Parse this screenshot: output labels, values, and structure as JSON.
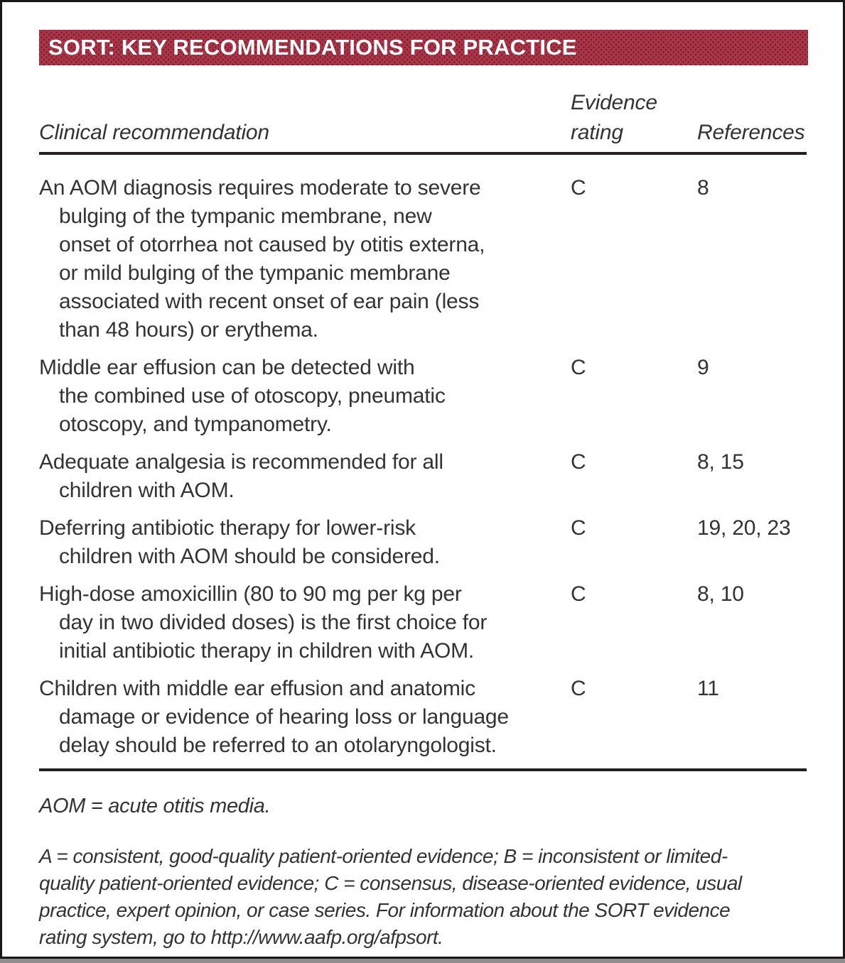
{
  "title_bar": {
    "text": "SORT: KEY RECOMMENDATIONS FOR PRACTICE",
    "background_color": "#a43043",
    "text_color": "#ffffff"
  },
  "table": {
    "columns": {
      "recommendation": "Clinical recommendation",
      "evidence_line1": "Evidence",
      "evidence_line2": "rating",
      "references": "References"
    },
    "rows": [
      {
        "recommendation": "An AOM diagnosis requires moderate to severe\nbulging of the tympanic membrane, new\nonset of otorrhea not caused by otitis externa,\nor mild bulging of the tympanic membrane\nassociated with recent onset of ear pain (less\nthan 48 hours) or erythema.",
        "evidence_rating": "C",
        "references": "8"
      },
      {
        "recommendation": "Middle ear effusion can be detected with\nthe combined use of otoscopy, pneumatic\notoscopy, and tympanometry.",
        "evidence_rating": "C",
        "references": "9"
      },
      {
        "recommendation": "Adequate analgesia is recommended for all\nchildren with AOM.",
        "evidence_rating": "C",
        "references": "8, 15"
      },
      {
        "recommendation": "Deferring antibiotic therapy for lower-risk\nchildren with AOM should be considered.",
        "evidence_rating": "C",
        "references": "19, 20, 23"
      },
      {
        "recommendation": "High-dose amoxicillin (80 to 90 mg per kg per\nday in two divided doses) is the first choice for\ninitial antibiotic therapy in children with AOM.",
        "evidence_rating": "C",
        "references": "8, 10"
      },
      {
        "recommendation": "Children with middle ear effusion and anatomic\ndamage or evidence of hearing loss or language\ndelay should be referred to an otolaryngologist.",
        "evidence_rating": "C",
        "references": "11"
      }
    ]
  },
  "footnotes": {
    "abbreviation": "AOM = acute otitis media.",
    "sort_key": "A = consistent, good-quality patient-oriented evidence; B = inconsistent or limited-\nquality patient-oriented evidence; C = consensus, disease-oriented evidence, usual\npractice, expert opinion, or case series. For information about the SORT evidence\nrating system, go to http://www.aafp.org/afpsort."
  }
}
